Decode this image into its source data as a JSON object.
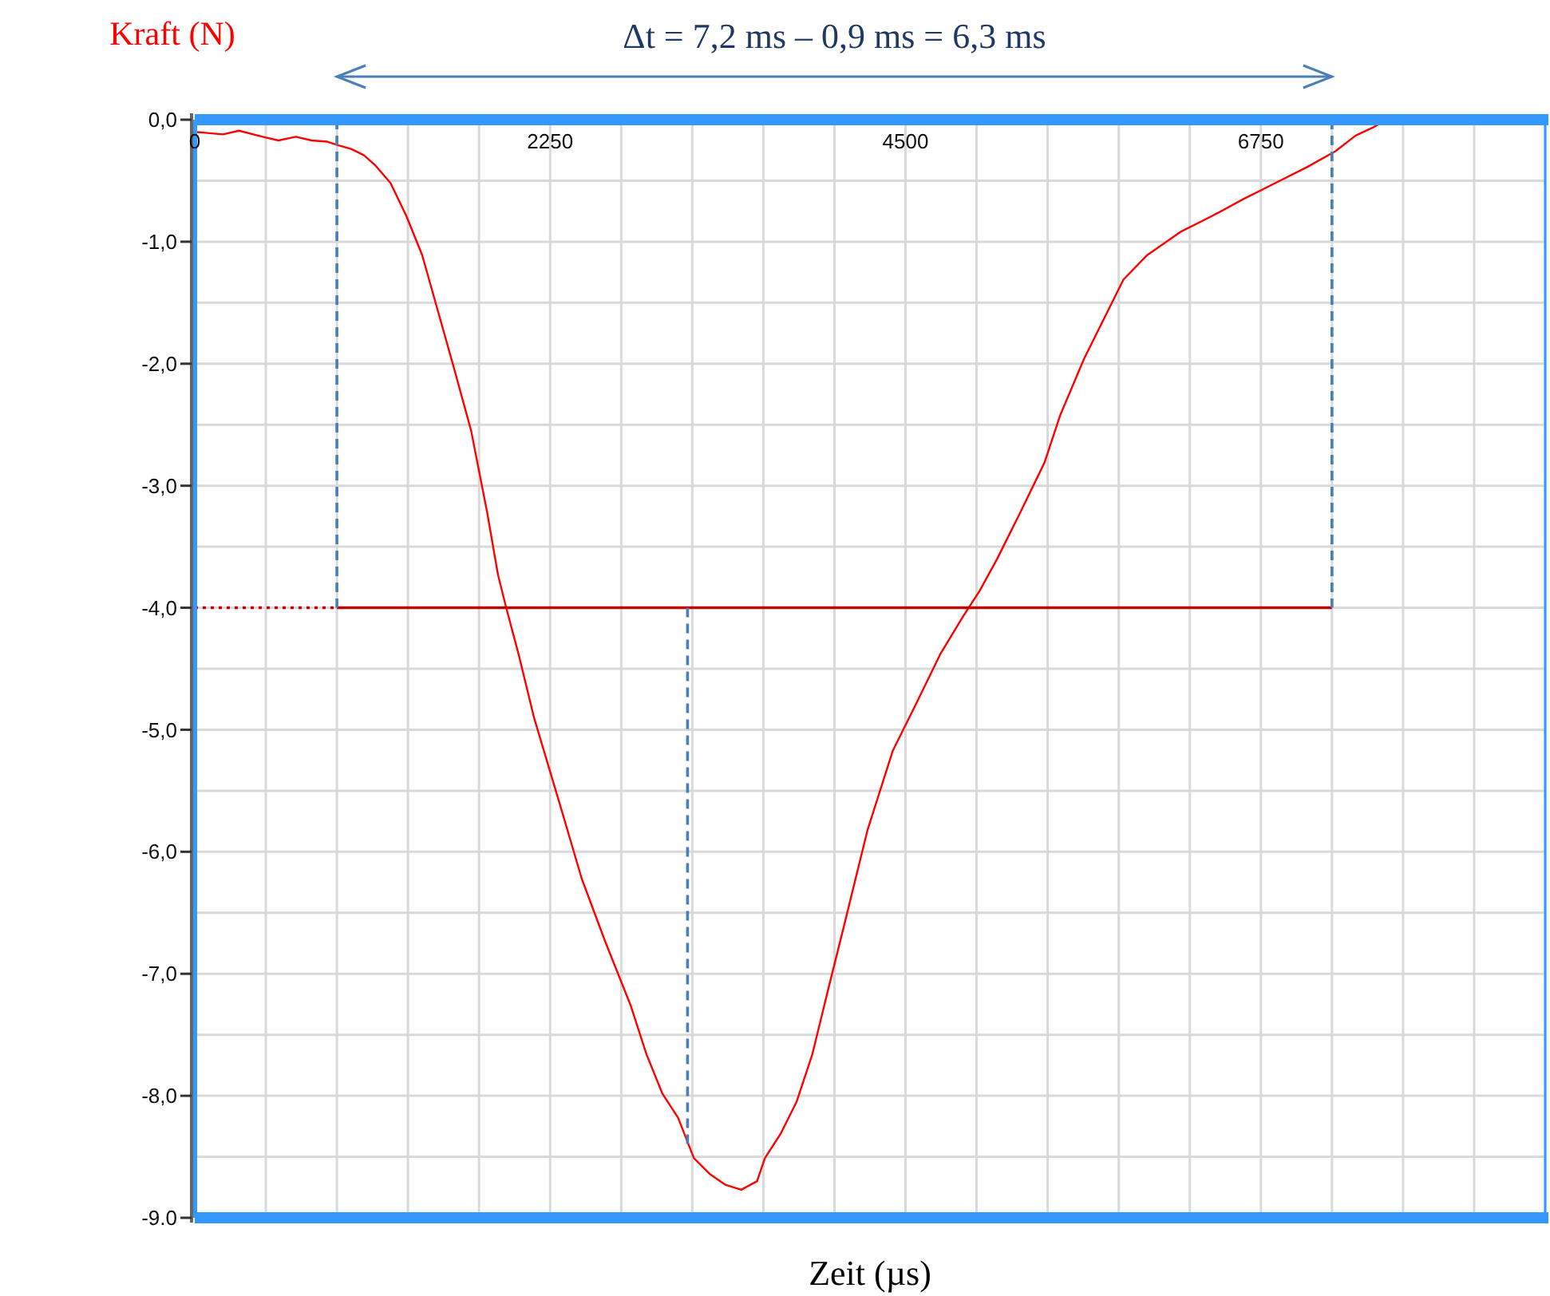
{
  "chart_data": {
    "type": "line",
    "xlabel": "Zeit  (µs)",
    "ylabel": "Kraft  (N)",
    "annotations": [
      "Δt =  7,2 ms – 0,9 ms = 6,3 ms"
    ],
    "xlim": [
      0,
      8550
    ],
    "ylim": [
      -9,
      0
    ],
    "xticks": [
      0,
      {
        "value": 450,
        "label": null
      },
      {
        "value": 900,
        "label": null
      },
      {
        "value": 1350,
        "label": null
      },
      {
        "value": 1800,
        "label": null
      },
      2250,
      {
        "value": 2700,
        "label": null
      },
      {
        "value": 3150,
        "label": null
      },
      {
        "value": 3600,
        "label": null
      },
      {
        "value": 4050,
        "label": null
      },
      4500,
      {
        "value": 4950,
        "label": null
      },
      {
        "value": 5400,
        "label": null
      },
      {
        "value": 5850,
        "label": null
      },
      {
        "value": 6300,
        "label": null
      },
      6750,
      {
        "value": 7200,
        "label": null
      },
      {
        "value": 7650,
        "label": null
      },
      {
        "value": 8100,
        "label": null
      },
      {
        "value": 8550,
        "label": null
      }
    ],
    "yticks": [
      {
        "value": 0,
        "label": "0,0"
      },
      {
        "value": -0.5,
        "label": null
      },
      {
        "value": -1,
        "label": "-1,0"
      },
      {
        "value": -1.5,
        "label": null
      },
      {
        "value": -2,
        "label": "-2,0"
      },
      {
        "value": -2.5,
        "label": null
      },
      {
        "value": -3,
        "label": "-3,0"
      },
      {
        "value": -3.5,
        "label": null
      },
      {
        "value": -4,
        "label": "-4,0"
      },
      {
        "value": -4.5,
        "label": null
      },
      {
        "value": -5,
        "label": "-5,0"
      },
      {
        "value": -5.5,
        "label": null
      },
      {
        "value": -6,
        "label": "-6,0"
      },
      {
        "value": -6.5,
        "label": null
      },
      {
        "value": -7,
        "label": "-7,0"
      },
      {
        "value": -7.5,
        "label": null
      },
      {
        "value": -8,
        "label": "-8,0"
      },
      {
        "value": -8.5,
        "label": null
      },
      {
        "value": -9,
        "label": "-9.0"
      }
    ],
    "grid": true,
    "series": [
      {
        "color": "#ff0000",
        "x": [
          0,
          180,
          280,
          430,
          530,
          640,
          740,
          840,
          910,
          990,
          1070,
          1140,
          1240,
          1340,
          1440,
          1540,
          1640,
          1750,
          1850,
          1920,
          1970,
          2050,
          2150,
          2300,
          2450,
          2600,
          2760,
          2860,
          2960,
          3060,
          3160,
          3260,
          3360,
          3460,
          3560,
          3610,
          3710,
          3810,
          3910,
          4010,
          4110,
          4260,
          4420,
          4570,
          4720,
          4870,
          4970,
          5080,
          5230,
          5380,
          5480,
          5630,
          5780,
          5880,
          6030,
          6240,
          6440,
          6640,
          6840,
          7040,
          7220,
          7350,
          7450,
          7550,
          8550
        ],
        "values": [
          -0.1,
          -0.12,
          -0.09,
          -0.14,
          -0.17,
          -0.14,
          -0.17,
          -0.18,
          -0.21,
          -0.24,
          -0.29,
          -0.37,
          -0.52,
          -0.79,
          -1.11,
          -1.57,
          -2.03,
          -2.55,
          -3.21,
          -3.73,
          -3.99,
          -4.38,
          -4.91,
          -5.56,
          -6.22,
          -6.74,
          -7.26,
          -7.66,
          -7.98,
          -8.18,
          -8.51,
          -8.64,
          -8.73,
          -8.77,
          -8.7,
          -8.51,
          -8.31,
          -8.05,
          -7.66,
          -7.13,
          -6.61,
          -5.82,
          -5.17,
          -4.78,
          -4.38,
          -4.06,
          -3.86,
          -3.6,
          -3.21,
          -2.81,
          -2.42,
          -1.96,
          -1.57,
          -1.31,
          -1.11,
          -0.92,
          -0.79,
          -0.65,
          -0.52,
          -0.39,
          -0.26,
          -0.13,
          -0.07,
          0,
          0
        ]
      },
      {
        "color": "#c00000",
        "x": [
          900,
          7200
        ],
        "values": [
          -4,
          -4
        ],
        "line_style": "solid"
      },
      {
        "color": "#c00000",
        "x": [
          0,
          900
        ],
        "values": [
          -4,
          -4
        ],
        "line_style": "dotted"
      },
      {
        "color": "#4a7ebb",
        "x": [
          900,
          900
        ],
        "values": [
          0,
          -4
        ],
        "line_style": "dashed"
      },
      {
        "color": "#4a7ebb",
        "x": [
          7200,
          7200
        ],
        "values": [
          0,
          -4
        ],
        "line_style": "dashed"
      },
      {
        "color": "#4a7ebb",
        "x": [
          3120,
          3120
        ],
        "values": [
          -4,
          -8.4
        ],
        "line_style": "dashed"
      }
    ]
  }
}
